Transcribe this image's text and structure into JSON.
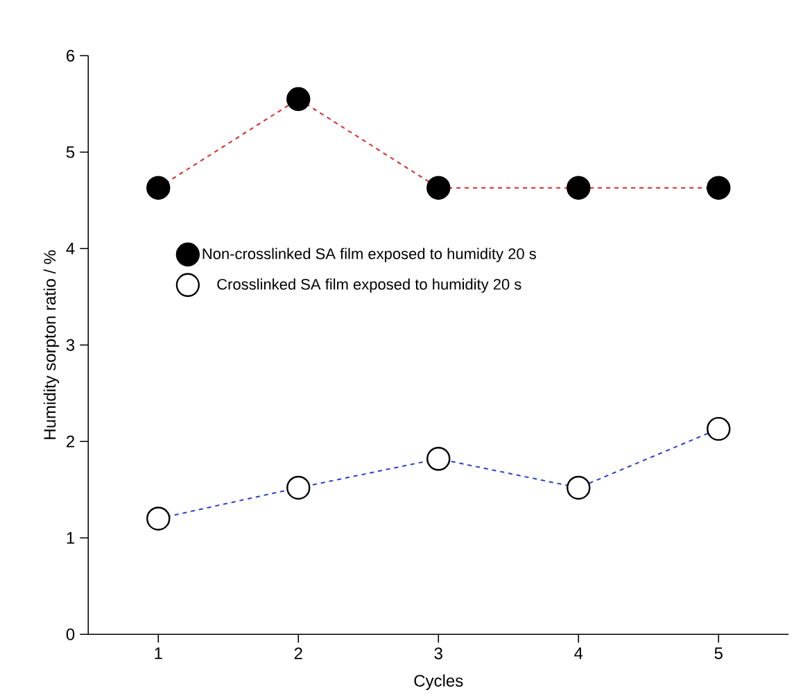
{
  "chart_data": {
    "type": "line",
    "xlabel": "Cycles",
    "ylabel": "Humidity sorpton ratio / %",
    "x": [
      1,
      2,
      3,
      4,
      5
    ],
    "series": [
      {
        "name": "Non-crosslinked SA film exposed to humidity 20 s",
        "color": "#d42a2a",
        "values": [
          4.63,
          5.55,
          4.63,
          4.63,
          4.63
        ]
      },
      {
        "name": "Crosslinked SA film exposed to humidity 20 s",
        "color": "#2a3fc8",
        "values": [
          1.2,
          1.52,
          1.82,
          1.52,
          2.13
        ]
      }
    ],
    "xlim": [
      0.5,
      5.5
    ],
    "ylim": [
      0,
      6
    ],
    "xticks": [
      1,
      2,
      3,
      4,
      5
    ],
    "yticks": [
      0,
      1,
      2,
      3,
      4,
      5,
      6
    ],
    "grid": false,
    "legend": "left",
    "marker": "circle",
    "line_style": "dashed"
  }
}
